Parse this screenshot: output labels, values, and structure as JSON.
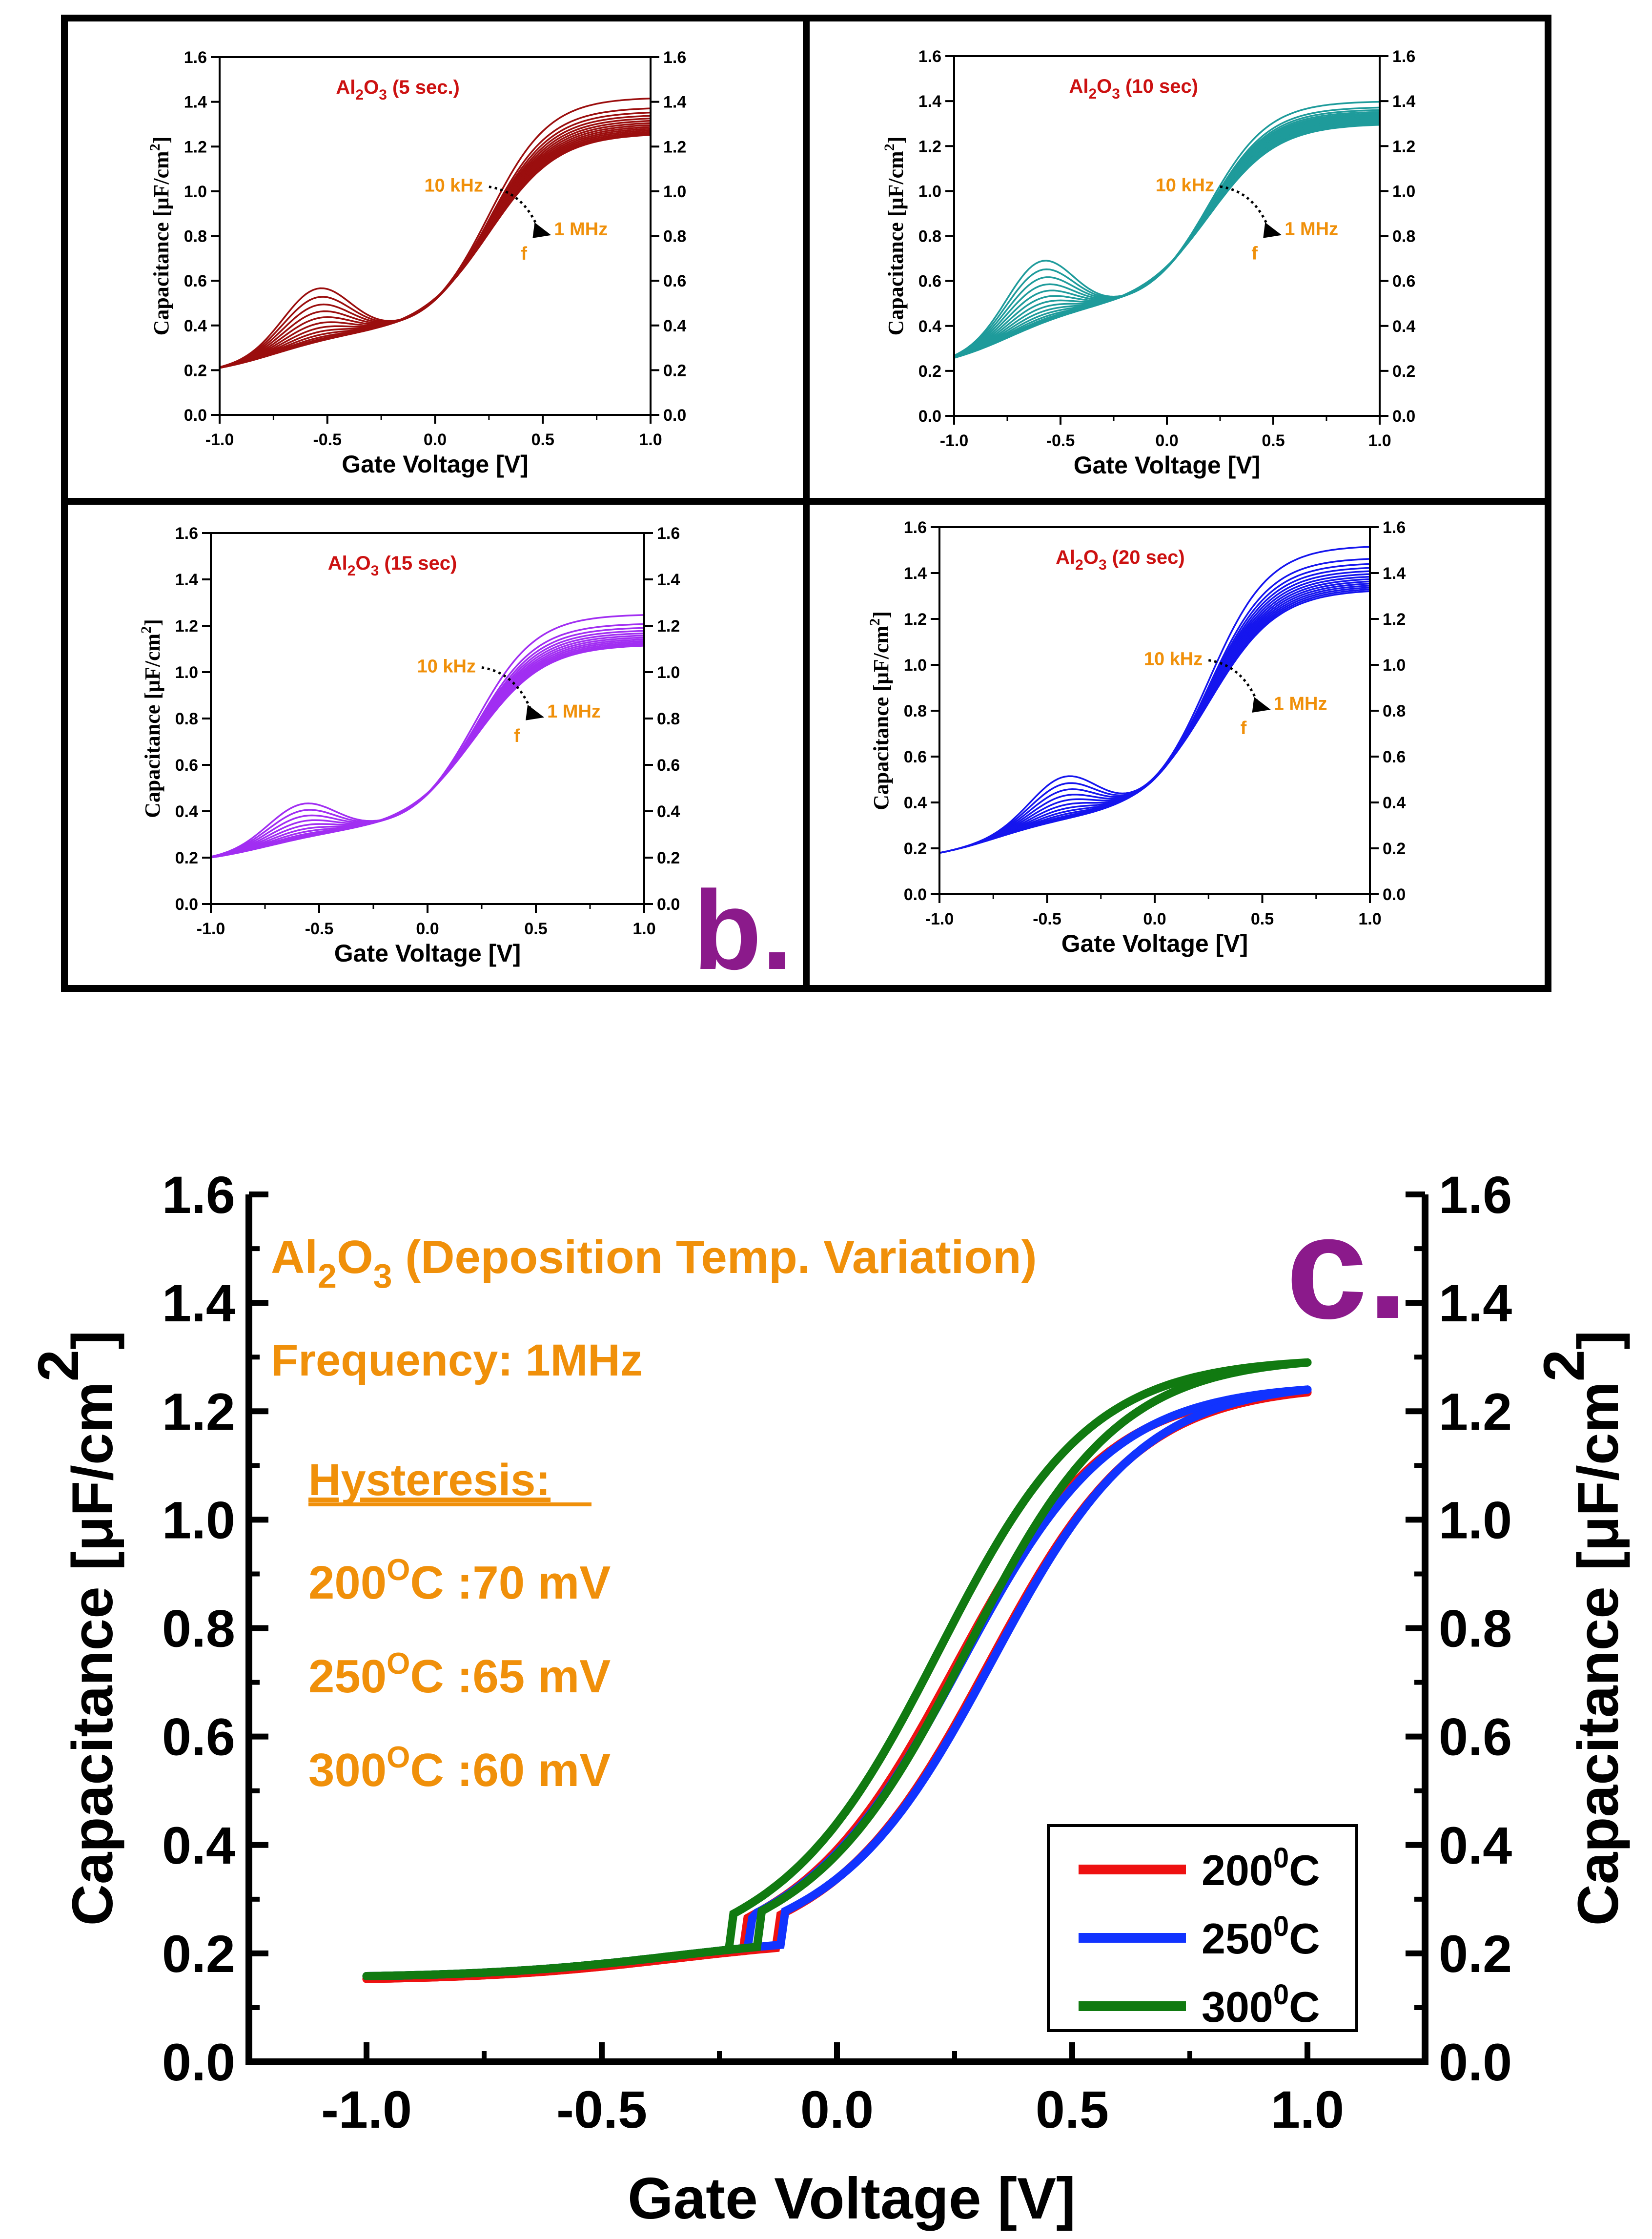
{
  "figure_label_b": "b.",
  "figure_label_c": "c.",
  "colors": {
    "panel_5s": "#9b0e0e",
    "panel_10s": "#1e9b9b",
    "panel_15s": "#a12ef2",
    "panel_20s": "#1515ee",
    "annotation": "#f0900a",
    "title_red": "#cc1111",
    "label_purple": "#8b1a8b",
    "c_200": "#ee1111",
    "c_250": "#1133ff",
    "c_300": "#117a11"
  },
  "chart_data": [
    {
      "id": "b1",
      "type": "line",
      "title_main": "Al",
      "title_sub1": "2",
      "title_mid": "O",
      "title_sub2": "3",
      "title_rest": " (5 sec.)",
      "xlabel": "Gate Voltage [V]",
      "ylabel": "Capacitance [μF/cm",
      "ylabel_sup": "2",
      "ylabel_end": "]",
      "xlim": [
        -1.0,
        1.0
      ],
      "ylim": [
        0.0,
        1.6
      ],
      "x_ticks": [
        "-1.0",
        "-0.5",
        "0.0",
        "0.5",
        "1.0"
      ],
      "y_ticks": [
        "0.0",
        "0.2",
        "0.4",
        "0.6",
        "0.8",
        "1.0",
        "1.2",
        "1.4",
        "1.6"
      ],
      "freq_start": "10 kHz",
      "freq_end": "1 MHz",
      "freq_var": "f",
      "curve_params": {
        "n": 14,
        "y_left": 0.17,
        "y_plateau": 0.37,
        "hump_max": 0.24,
        "hump_x": -0.55,
        "y_high_min": 1.26,
        "y_high_max": 1.42,
        "x_mid": 0.25
      }
    },
    {
      "id": "b2",
      "type": "line",
      "title_main": "Al",
      "title_sub1": "2",
      "title_mid": "O",
      "title_sub2": "3",
      "title_rest": " (10 sec)",
      "xlabel": "Gate Voltage [V]",
      "ylabel": "Capacitance [μF/cm",
      "ylabel_sup": "2",
      "ylabel_end": "]",
      "xlim": [
        -1.0,
        1.0
      ],
      "ylim": [
        0.0,
        1.6
      ],
      "x_ticks": [
        "-1.0",
        "-0.5",
        "0.0",
        "0.5",
        "1.0"
      ],
      "y_ticks": [
        "0.0",
        "0.2",
        "0.4",
        "0.6",
        "0.8",
        "1.0",
        "1.2",
        "1.4",
        "1.6"
      ],
      "freq_start": "10 kHz",
      "freq_end": "1 MHz",
      "freq_var": "f",
      "curve_params": {
        "n": 16,
        "y_left": 0.2,
        "y_plateau": 0.49,
        "hump_max": 0.28,
        "hump_x": -0.6,
        "y_high_min": 1.3,
        "y_high_max": 1.4,
        "x_mid": 0.2
      }
    },
    {
      "id": "b3",
      "type": "line",
      "title_main": "Al",
      "title_sub1": "2",
      "title_mid": "O",
      "title_sub2": "3",
      "title_rest": " (15 sec)",
      "xlabel": "Gate Voltage [V]",
      "ylabel": "Capacitance [μF/cm",
      "ylabel_sup": "2",
      "ylabel_end": "]",
      "xlim": [
        -1.0,
        1.0
      ],
      "ylim": [
        0.0,
        1.6
      ],
      "x_ticks": [
        "-1.0",
        "-0.5",
        "0.0",
        "0.5",
        "1.0"
      ],
      "y_ticks": [
        "0.0",
        "0.2",
        "0.4",
        "0.6",
        "0.8",
        "1.0",
        "1.2",
        "1.4",
        "1.6"
      ],
      "freq_start": "10 kHz",
      "freq_end": "1 MHz",
      "freq_var": "f",
      "curve_params": {
        "n": 12,
        "y_left": 0.17,
        "y_plateau": 0.32,
        "hump_max": 0.15,
        "hump_x": -0.58,
        "y_high_min": 1.12,
        "y_high_max": 1.25,
        "x_mid": 0.22
      }
    },
    {
      "id": "b4",
      "type": "line",
      "title_main": "Al",
      "title_sub1": "2",
      "title_mid": "O",
      "title_sub2": "3",
      "title_rest": " (20 sec)",
      "xlabel": "Gate Voltage [V]",
      "ylabel": "Capacitance [μF/cm",
      "ylabel_sup": "2",
      "ylabel_end": "]",
      "xlim": [
        -1.0,
        1.0
      ],
      "ylim": [
        0.0,
        1.6
      ],
      "x_ticks": [
        "-1.0",
        "-0.5",
        "0.0",
        "0.5",
        "1.0"
      ],
      "y_ticks": [
        "0.0",
        "0.2",
        "0.4",
        "0.6",
        "0.8",
        "1.0",
        "1.2",
        "1.4",
        "1.6"
      ],
      "freq_start": "10 kHz",
      "freq_end": "1 MHz",
      "freq_var": "f",
      "curve_params": {
        "n": 14,
        "y_left": 0.14,
        "y_plateau": 0.34,
        "hump_max": 0.19,
        "hump_x": -0.42,
        "y_high_min": 1.33,
        "y_high_max": 1.52,
        "x_mid": 0.25
      }
    },
    {
      "id": "c",
      "type": "line",
      "title_main": "Al",
      "title_sub1": "2",
      "title_mid": "O",
      "title_sub2": "3",
      "title_rest": " (Deposition Temp. Variation)",
      "frequency": "Frequency: 1MHz",
      "hysteresis_title": "Hysteresis:",
      "hysteresis": [
        {
          "temp": "200",
          "sup": "O",
          "rest": "C :70 mV"
        },
        {
          "temp": "250",
          "sup": "O",
          "rest": "C :65 mV"
        },
        {
          "temp": "300",
          "sup": "O",
          "rest": "C :60 mV"
        }
      ],
      "xlabel": "Gate Voltage [V]",
      "ylabel": "Capacitance [μF/cm",
      "ylabel_sup": "2",
      "ylabel_end": "]",
      "xlim": [
        -1.25,
        1.25
      ],
      "ylim": [
        0.0,
        1.6
      ],
      "x_ticks": [
        -1.0,
        -0.5,
        0.0,
        0.5,
        1.0
      ],
      "x_tick_labels": [
        "-1.0",
        "-0.5",
        "0.0",
        "0.5",
        "1.0"
      ],
      "y_ticks": [
        0.0,
        0.2,
        0.4,
        0.6,
        0.8,
        1.0,
        1.2,
        1.4,
        1.6
      ],
      "y_tick_labels": [
        "0.0",
        "0.2",
        "0.4",
        "0.6",
        "0.8",
        "1.0",
        "1.2",
        "1.4",
        "1.6"
      ],
      "series": [
        {
          "name": "200",
          "sup": "0",
          "unit": "C",
          "color": "#ee1111",
          "y_start": 0.15,
          "y_end": 1.235,
          "x_mid": 0.29,
          "hysteresis_v": 0.07
        },
        {
          "name": "250",
          "sup": "0",
          "unit": "C",
          "color": "#1133ff",
          "y_start": 0.155,
          "y_end": 1.24,
          "x_mid": 0.3,
          "hysteresis_v": 0.065
        },
        {
          "name": "300",
          "sup": "0",
          "unit": "C",
          "color": "#117a11",
          "y_start": 0.155,
          "y_end": 1.29,
          "x_mid": 0.25,
          "hysteresis_v": 0.06
        }
      ]
    }
  ]
}
